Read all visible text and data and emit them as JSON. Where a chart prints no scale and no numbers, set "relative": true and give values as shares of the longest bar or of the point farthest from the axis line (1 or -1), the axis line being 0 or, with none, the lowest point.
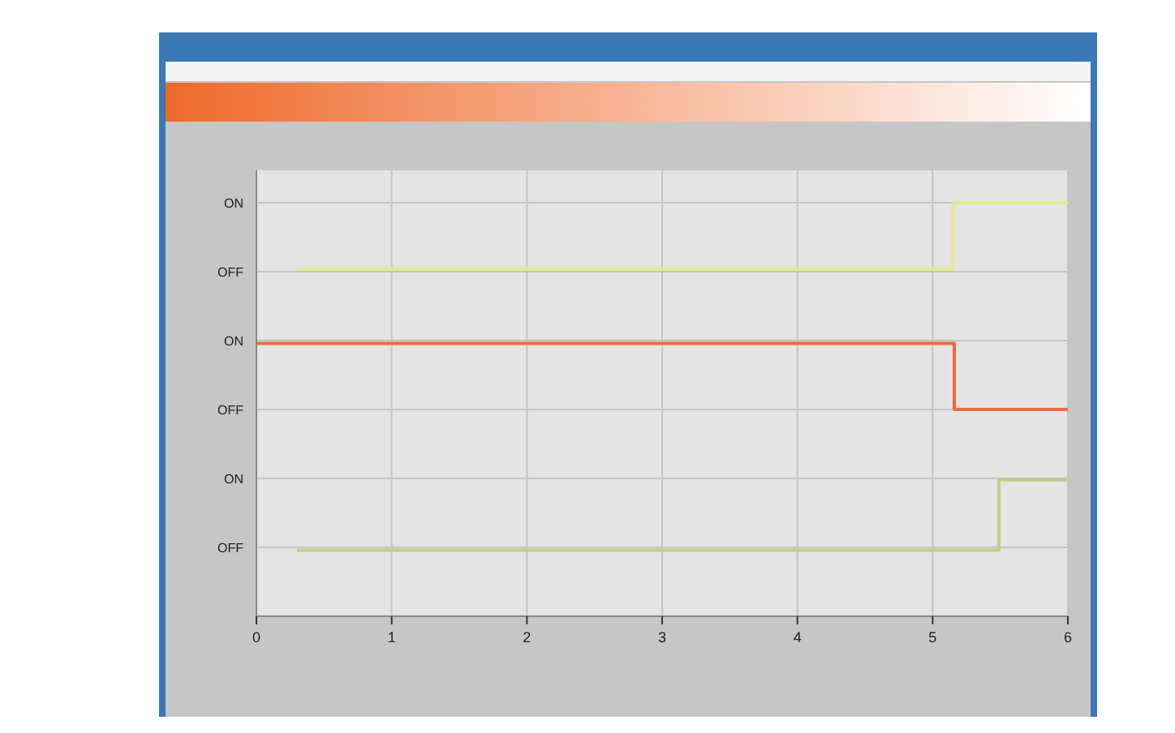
{
  "chart_data": {
    "type": "step",
    "relative": true,
    "xlim": [
      0,
      6
    ],
    "xticks": [
      0,
      1,
      2,
      3,
      4,
      5,
      6
    ],
    "annotations": [
      "OFF",
      "ON",
      "OFF",
      "ON",
      "OFF",
      "ON"
    ],
    "grid": true,
    "series": [
      {
        "color": "#e6ea8a",
        "x": [
          0.3,
          5.15,
          6
        ],
        "values": [
          0.84,
          1,
          1
        ]
      },
      {
        "color": "#ee6a40",
        "x": [
          0,
          5.16,
          6
        ],
        "values": [
          0.66,
          0.5,
          0.5
        ]
      },
      {
        "color": "#c4cc88",
        "x": [
          0.3,
          5.49,
          6
        ],
        "values": [
          0.16,
          0.33,
          0.33
        ]
      }
    ]
  }
}
